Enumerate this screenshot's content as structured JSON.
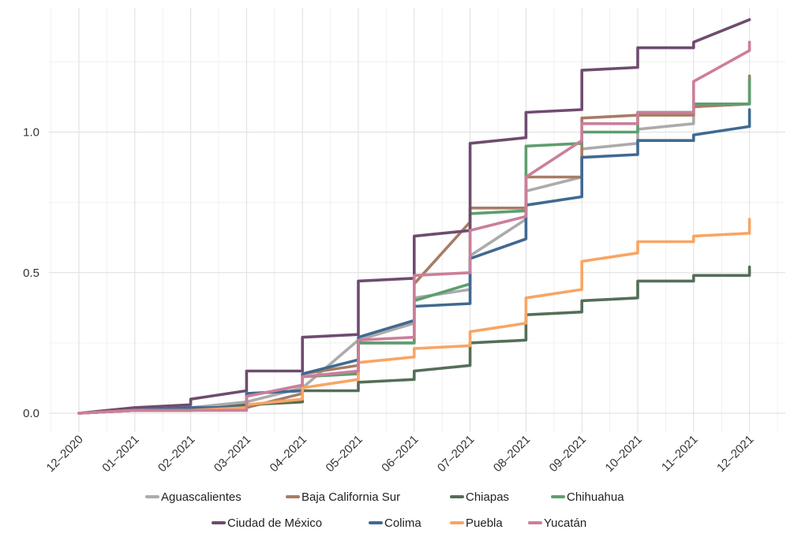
{
  "chart_data": {
    "type": "line",
    "title": "",
    "xlabel": "",
    "ylabel": "",
    "x": [
      "12–2020",
      "01–2021",
      "02–2021",
      "03–2021",
      "04–2021",
      "05–2021",
      "06–2021",
      "07–2021",
      "08–2021",
      "09–2021",
      "10–2021",
      "11–2021",
      "12–2021"
    ],
    "y_ticks": [
      "0.0",
      "0.5",
      "1.0"
    ],
    "ylim": [
      -0.07,
      1.42
    ],
    "grid": true,
    "legend_position": "bottom",
    "series": [
      {
        "name": "Aguascalientes",
        "color": "#ababab",
        "points": [
          [
            0,
            0.0
          ],
          [
            1,
            0.01
          ],
          [
            2,
            0.02
          ],
          [
            3,
            0.04
          ],
          [
            4,
            0.09
          ],
          [
            5,
            0.26
          ],
          [
            6,
            0.32
          ],
          [
            6,
            0.41
          ],
          [
            7,
            0.44
          ],
          [
            7,
            0.56
          ],
          [
            8,
            0.69
          ],
          [
            8,
            0.79
          ],
          [
            9,
            0.84
          ],
          [
            9,
            0.94
          ],
          [
            10,
            0.96
          ],
          [
            10,
            1.01
          ],
          [
            11,
            1.03
          ],
          [
            11,
            1.09
          ],
          [
            12,
            1.1
          ]
        ]
      },
      {
        "name": "Baja California Sur",
        "color": "#a87c65",
        "points": [
          [
            0,
            0.0
          ],
          [
            1,
            0.01
          ],
          [
            2,
            0.01
          ],
          [
            3,
            0.02
          ],
          [
            4,
            0.07
          ],
          [
            4,
            0.14
          ],
          [
            5,
            0.17
          ],
          [
            5,
            0.25
          ],
          [
            6,
            0.25
          ],
          [
            6,
            0.46
          ],
          [
            7,
            0.68
          ],
          [
            7,
            0.73
          ],
          [
            8,
            0.73
          ],
          [
            8,
            0.84
          ],
          [
            9,
            0.84
          ],
          [
            9,
            1.05
          ],
          [
            10,
            1.06
          ],
          [
            10,
            1.06
          ],
          [
            11,
            1.06
          ],
          [
            11,
            1.09
          ],
          [
            12,
            1.1
          ],
          [
            12,
            1.2
          ]
        ]
      },
      {
        "name": "Chiapas",
        "color": "#556e58",
        "points": [
          [
            0,
            0.0
          ],
          [
            1,
            0.01
          ],
          [
            2,
            0.01
          ],
          [
            3,
            0.03
          ],
          [
            4,
            0.04
          ],
          [
            4,
            0.08
          ],
          [
            5,
            0.08
          ],
          [
            5,
            0.11
          ],
          [
            6,
            0.12
          ],
          [
            6,
            0.15
          ],
          [
            7,
            0.17
          ],
          [
            7,
            0.25
          ],
          [
            8,
            0.26
          ],
          [
            8,
            0.35
          ],
          [
            9,
            0.36
          ],
          [
            9,
            0.4
          ],
          [
            10,
            0.41
          ],
          [
            10,
            0.47
          ],
          [
            11,
            0.47
          ],
          [
            11,
            0.49
          ],
          [
            12,
            0.49
          ],
          [
            12,
            0.52
          ]
        ]
      },
      {
        "name": "Chihuahua",
        "color": "#5e9e70",
        "points": [
          [
            0,
            0.0
          ],
          [
            1,
            0.01
          ],
          [
            2,
            0.01
          ],
          [
            3,
            0.02
          ],
          [
            3,
            0.07
          ],
          [
            4,
            0.08
          ],
          [
            4,
            0.13
          ],
          [
            5,
            0.14
          ],
          [
            5,
            0.25
          ],
          [
            6,
            0.25
          ],
          [
            6,
            0.4
          ],
          [
            7,
            0.46
          ],
          [
            7,
            0.71
          ],
          [
            8,
            0.72
          ],
          [
            8,
            0.95
          ],
          [
            9,
            0.96
          ],
          [
            9,
            1.0
          ],
          [
            10,
            1.0
          ],
          [
            10,
            1.07
          ],
          [
            11,
            1.07
          ],
          [
            11,
            1.1
          ],
          [
            12,
            1.1
          ],
          [
            12,
            1.19
          ]
        ]
      },
      {
        "name": "Ciudad de México",
        "color": "#6e4c6e",
        "points": [
          [
            0,
            0.0
          ],
          [
            1,
            0.02
          ],
          [
            2,
            0.03
          ],
          [
            2,
            0.05
          ],
          [
            3,
            0.08
          ],
          [
            3,
            0.15
          ],
          [
            4,
            0.15
          ],
          [
            4,
            0.27
          ],
          [
            5,
            0.28
          ],
          [
            5,
            0.47
          ],
          [
            6,
            0.48
          ],
          [
            6,
            0.63
          ],
          [
            7,
            0.65
          ],
          [
            7,
            0.96
          ],
          [
            8,
            0.98
          ],
          [
            8,
            1.07
          ],
          [
            9,
            1.08
          ],
          [
            9,
            1.22
          ],
          [
            10,
            1.23
          ],
          [
            10,
            1.3
          ],
          [
            11,
            1.3
          ],
          [
            11,
            1.32
          ],
          [
            12,
            1.4
          ]
        ]
      },
      {
        "name": "Colima",
        "color": "#406a91",
        "points": [
          [
            0,
            0.0
          ],
          [
            1,
            0.01
          ],
          [
            2,
            0.02
          ],
          [
            3,
            0.02
          ],
          [
            3,
            0.07
          ],
          [
            4,
            0.08
          ],
          [
            4,
            0.14
          ],
          [
            5,
            0.19
          ],
          [
            5,
            0.27
          ],
          [
            6,
            0.33
          ],
          [
            6,
            0.38
          ],
          [
            7,
            0.39
          ],
          [
            7,
            0.55
          ],
          [
            8,
            0.62
          ],
          [
            8,
            0.74
          ],
          [
            9,
            0.77
          ],
          [
            9,
            0.91
          ],
          [
            10,
            0.92
          ],
          [
            10,
            0.97
          ],
          [
            11,
            0.97
          ],
          [
            11,
            0.99
          ],
          [
            12,
            1.02
          ],
          [
            12,
            1.08
          ]
        ]
      },
      {
        "name": "Puebla",
        "color": "#f8a564",
        "points": [
          [
            0,
            0.0
          ],
          [
            1,
            0.01
          ],
          [
            2,
            0.01
          ],
          [
            3,
            0.02
          ],
          [
            3,
            0.03
          ],
          [
            4,
            0.05
          ],
          [
            4,
            0.09
          ],
          [
            5,
            0.12
          ],
          [
            5,
            0.18
          ],
          [
            6,
            0.2
          ],
          [
            6,
            0.23
          ],
          [
            7,
            0.24
          ],
          [
            7,
            0.29
          ],
          [
            8,
            0.32
          ],
          [
            8,
            0.41
          ],
          [
            9,
            0.44
          ],
          [
            9,
            0.54
          ],
          [
            10,
            0.57
          ],
          [
            10,
            0.61
          ],
          [
            11,
            0.61
          ],
          [
            11,
            0.63
          ],
          [
            12,
            0.64
          ],
          [
            12,
            0.69
          ]
        ]
      },
      {
        "name": "Yucatán",
        "color": "#cc7e9a",
        "points": [
          [
            0,
            0.0
          ],
          [
            1,
            0.01
          ],
          [
            2,
            0.01
          ],
          [
            3,
            0.01
          ],
          [
            3,
            0.06
          ],
          [
            4,
            0.1
          ],
          [
            4,
            0.13
          ],
          [
            5,
            0.15
          ],
          [
            5,
            0.26
          ],
          [
            6,
            0.27
          ],
          [
            6,
            0.49
          ],
          [
            7,
            0.5
          ],
          [
            7,
            0.65
          ],
          [
            8,
            0.7
          ],
          [
            8,
            0.84
          ],
          [
            9,
            0.97
          ],
          [
            9,
            1.03
          ],
          [
            10,
            1.03
          ],
          [
            10,
            1.07
          ],
          [
            11,
            1.07
          ],
          [
            11,
            1.18
          ],
          [
            12,
            1.29
          ],
          [
            12,
            1.32
          ]
        ]
      }
    ]
  }
}
